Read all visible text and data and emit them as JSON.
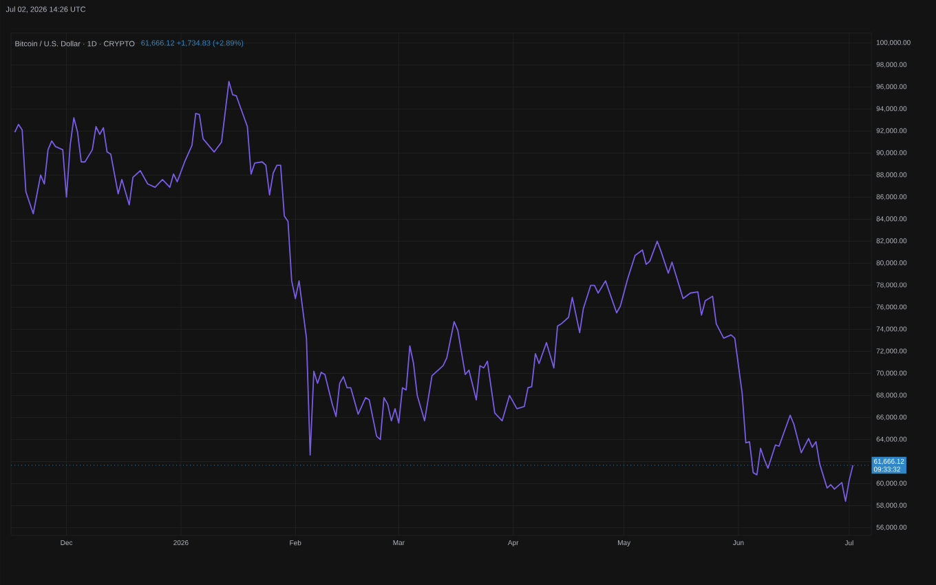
{
  "chart_data": {
    "type": "line",
    "title": "Bitcoin / U.S. Dollar · 1D · CRYPTO",
    "subtitle": "61,666.12  +1,734.83 (+2.89%)",
    "annotations": [
      "Jul 02, 2026 14:26 UTC",
      "09:33:32"
    ],
    "grid": true,
    "marker": "none",
    "line_style": "solid",
    "xlim": [
      "2025-11-16",
      "2026-07-07"
    ],
    "xticks": [
      {
        "value": "2025-12-01",
        "label": "Dec"
      },
      {
        "value": "2026-01-01",
        "label": "2026"
      },
      {
        "value": "2026-02-01",
        "label": "Feb"
      },
      {
        "value": "2026-03-01",
        "label": "Mar"
      },
      {
        "value": "2026-04-01",
        "label": "Apr"
      },
      {
        "value": "2026-05-01",
        "label": "May"
      },
      {
        "value": "2026-06-01",
        "label": "Jun"
      },
      {
        "value": "2026-07-01",
        "label": "Jul"
      }
    ],
    "ylim": [
      55300,
      100900
    ],
    "yticks": [
      {
        "value": 56000,
        "label": "56,000.00"
      },
      {
        "value": 58000,
        "label": "58,000.00"
      },
      {
        "value": 60000,
        "label": "60,000.00"
      },
      {
        "value": 62000,
        "label": null
      },
      {
        "value": 64000,
        "label": "64,000.00"
      },
      {
        "value": 66000,
        "label": "66,000.00"
      },
      {
        "value": 68000,
        "label": "68,000.00"
      },
      {
        "value": 70000,
        "label": "70,000.00"
      },
      {
        "value": 72000,
        "label": "72,000.00"
      },
      {
        "value": 74000,
        "label": "74,000.00"
      },
      {
        "value": 76000,
        "label": "76,000.00"
      },
      {
        "value": 78000,
        "label": "78,000.00"
      },
      {
        "value": 80000,
        "label": "80,000.00"
      },
      {
        "value": 82000,
        "label": "82,000.00"
      },
      {
        "value": 84000,
        "label": "84,000.00"
      },
      {
        "value": 86000,
        "label": "86,000.00"
      },
      {
        "value": 88000,
        "label": "88,000.00"
      },
      {
        "value": 90000,
        "label": "90,000.00"
      },
      {
        "value": 92000,
        "label": "92,000.00"
      },
      {
        "value": 94000,
        "label": "94,000.00"
      },
      {
        "value": 96000,
        "label": "96,000.00"
      },
      {
        "value": 98000,
        "label": "98,000.00"
      },
      {
        "value": 100000,
        "label": "100,000.00"
      }
    ],
    "ref_lines": [
      {
        "axis": "y",
        "value": 61666.12,
        "label": "61,666.12",
        "color": "#2f86c8",
        "line_style": "dotted"
      }
    ],
    "series": [
      {
        "color": "#7a5de6",
        "x": [
          "2025-11-17",
          "2025-11-18",
          "2025-11-19",
          "2025-11-20",
          "2025-11-22",
          "2025-11-24",
          "2025-11-25",
          "2025-11-26",
          "2025-11-27",
          "2025-11-28",
          "2025-11-30",
          "2025-12-01",
          "2025-12-02",
          "2025-12-03",
          "2025-12-04",
          "2025-12-05",
          "2025-12-06",
          "2025-12-08",
          "2025-12-09",
          "2025-12-10",
          "2025-12-11",
          "2025-12-12",
          "2025-12-13",
          "2025-12-15",
          "2025-12-16",
          "2025-12-18",
          "2025-12-19",
          "2025-12-21",
          "2025-12-23",
          "2025-12-25",
          "2025-12-27",
          "2025-12-29",
          "2025-12-30",
          "2025-12-31",
          "2026-01-02",
          "2026-01-04",
          "2026-01-05",
          "2026-01-06",
          "2026-01-07",
          "2026-01-10",
          "2026-01-12",
          "2026-01-14",
          "2026-01-15",
          "2026-01-16",
          "2026-01-19",
          "2026-01-20",
          "2026-01-21",
          "2026-01-23",
          "2026-01-24",
          "2026-01-25",
          "2026-01-26",
          "2026-01-27",
          "2026-01-28",
          "2026-01-29",
          "2026-01-30",
          "2026-01-31",
          "2026-02-01",
          "2026-02-02",
          "2026-02-04",
          "2026-02-05",
          "2026-02-06",
          "2026-02-07",
          "2026-02-08",
          "2026-02-09",
          "2026-02-11",
          "2026-02-12",
          "2026-02-13",
          "2026-02-14",
          "2026-02-15",
          "2026-02-16",
          "2026-02-18",
          "2026-02-20",
          "2026-02-21",
          "2026-02-23",
          "2026-02-24",
          "2026-02-25",
          "2026-02-26",
          "2026-02-27",
          "2026-02-28",
          "2026-03-01",
          "2026-03-02",
          "2026-03-03",
          "2026-03-04",
          "2026-03-05",
          "2026-03-06",
          "2026-03-08",
          "2026-03-10",
          "2026-03-13",
          "2026-03-14",
          "2026-03-16",
          "2026-03-17",
          "2026-03-19",
          "2026-03-20",
          "2026-03-22",
          "2026-03-23",
          "2026-03-24",
          "2026-03-25",
          "2026-03-27",
          "2026-03-29",
          "2026-03-31",
          "2026-04-02",
          "2026-04-04",
          "2026-04-05",
          "2026-04-06",
          "2026-04-07",
          "2026-04-08",
          "2026-04-10",
          "2026-04-12",
          "2026-04-13",
          "2026-04-14",
          "2026-04-16",
          "2026-04-17",
          "2026-04-19",
          "2026-04-20",
          "2026-04-22",
          "2026-04-23",
          "2026-04-24",
          "2026-04-26",
          "2026-04-29",
          "2026-04-30",
          "2026-05-02",
          "2026-05-04",
          "2026-05-06",
          "2026-05-07",
          "2026-05-08",
          "2026-05-10",
          "2026-05-11",
          "2026-05-13",
          "2026-05-14",
          "2026-05-17",
          "2026-05-19",
          "2026-05-21",
          "2026-05-22",
          "2026-05-23",
          "2026-05-25",
          "2026-05-26",
          "2026-05-28",
          "2026-05-30",
          "2026-05-31",
          "2026-06-02",
          "2026-06-03",
          "2026-06-04",
          "2026-06-05",
          "2026-06-06",
          "2026-06-07",
          "2026-06-08",
          "2026-06-09",
          "2026-06-11",
          "2026-06-12",
          "2026-06-15",
          "2026-06-16",
          "2026-06-18",
          "2026-06-20",
          "2026-06-21",
          "2026-06-22",
          "2026-06-23",
          "2026-06-25",
          "2026-06-26",
          "2026-06-27",
          "2026-06-29",
          "2026-06-30",
          "2026-07-01",
          "2026-07-02"
        ],
        "values": [
          91900,
          92600,
          92100,
          86500,
          84500,
          88000,
          87200,
          90300,
          91100,
          90600,
          90300,
          86000,
          90700,
          93200,
          91900,
          89200,
          89200,
          90300,
          92400,
          91700,
          92300,
          90100,
          89900,
          86300,
          87600,
          85300,
          87800,
          88400,
          87200,
          86900,
          87600,
          86900,
          88100,
          87400,
          89200,
          90700,
          93600,
          93500,
          91300,
          90100,
          91000,
          96500,
          95300,
          95200,
          92400,
          88100,
          89100,
          89200,
          88900,
          86200,
          88200,
          88900,
          88900,
          84300,
          83800,
          78400,
          76800,
          78400,
          73200,
          62600,
          70200,
          69100,
          70100,
          69900,
          67200,
          66100,
          69100,
          69700,
          68700,
          68700,
          66300,
          67800,
          67600,
          64300,
          64000,
          67800,
          67200,
          65700,
          66800,
          65500,
          68700,
          68500,
          72500,
          70900,
          68000,
          65700,
          69800,
          70700,
          71400,
          74700,
          73900,
          69900,
          70300,
          67600,
          70700,
          70500,
          71100,
          66400,
          65700,
          68000,
          66800,
          67000,
          68700,
          68800,
          71800,
          70900,
          72800,
          70500,
          74300,
          74500,
          75100,
          76900,
          73700,
          75900,
          78000,
          78000,
          77300,
          78400,
          75500,
          76100,
          78600,
          80700,
          81200,
          79900,
          80200,
          82000,
          81100,
          79100,
          80100,
          76800,
          77300,
          77400,
          75300,
          76600,
          77000,
          74500,
          73200,
          73500,
          73200,
          68200,
          63700,
          63800,
          61000,
          60800,
          63200,
          62200,
          61400,
          63500,
          63400,
          66200,
          65400,
          62800,
          64100,
          63300,
          63800,
          61800,
          59600,
          59900,
          59500,
          60100,
          58400,
          60300,
          61666.12
        ]
      }
    ]
  }
}
